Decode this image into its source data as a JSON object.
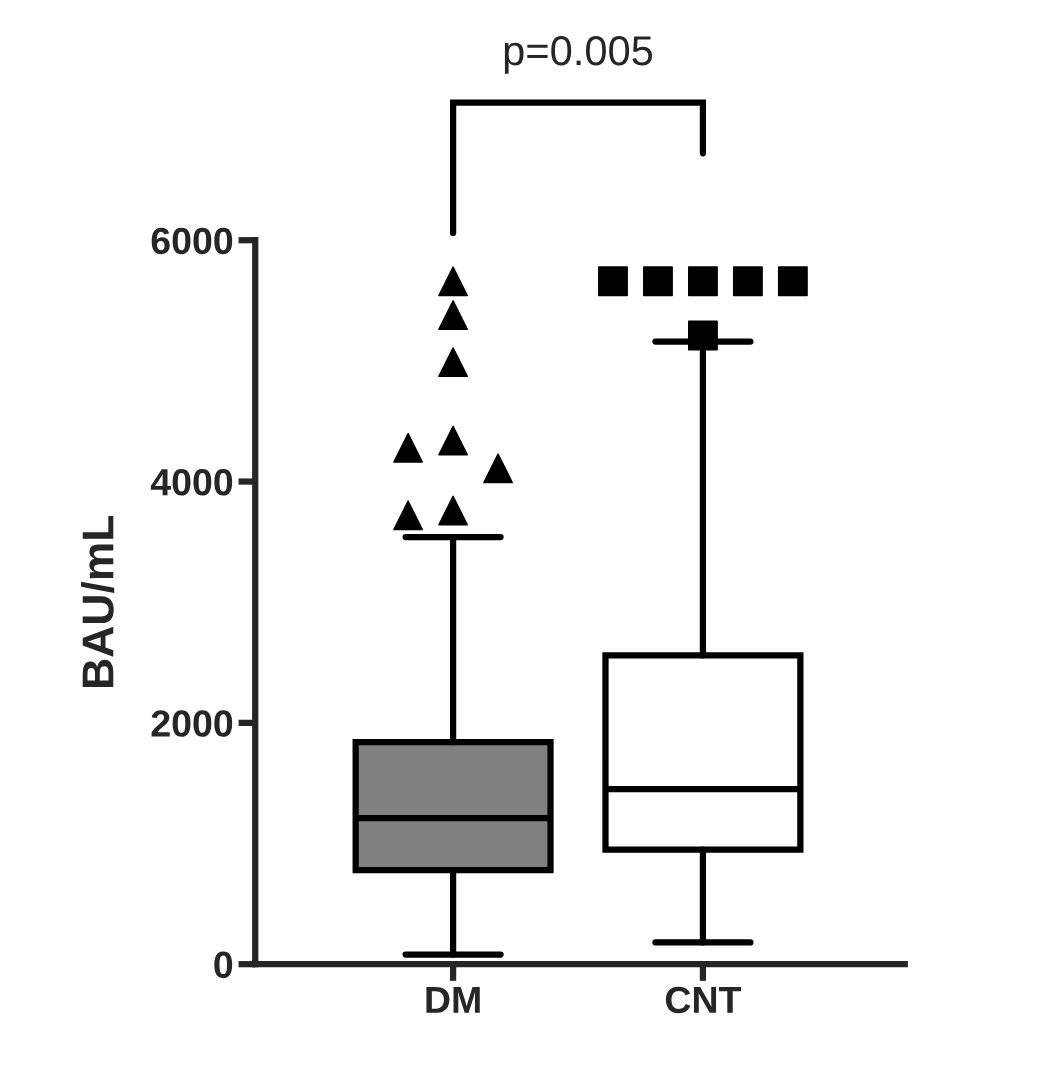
{
  "chart_data": {
    "type": "box",
    "ylabel": "BAU/mL",
    "categories": [
      "DM",
      "CNT"
    ],
    "series": [
      {
        "color": "#808080",
        "marker": "triangle",
        "boxes": [
          {
            "low": 80,
            "q1": 780,
            "median": 1210,
            "q3": 1840,
            "high": 3540,
            "outliers": [
              5660,
              5380,
              4990,
              4340,
              4280,
              4110,
              3760,
              3720
            ]
          },
          null
        ]
      },
      {
        "color": "#ffffff",
        "marker": "square",
        "boxes": [
          null,
          {
            "low": 180,
            "q1": 950,
            "median": 1450,
            "q3": 2560,
            "high": 5160,
            "outliers": [
              5660,
              5660,
              5660,
              5660,
              5660,
              5210
            ]
          }
        ]
      }
    ],
    "ylim": [
      0,
      6000
    ],
    "yticks": [
      0,
      2000,
      4000,
      6000
    ],
    "grid": false,
    "legend": false,
    "annotations": [
      "p=0.005"
    ]
  }
}
